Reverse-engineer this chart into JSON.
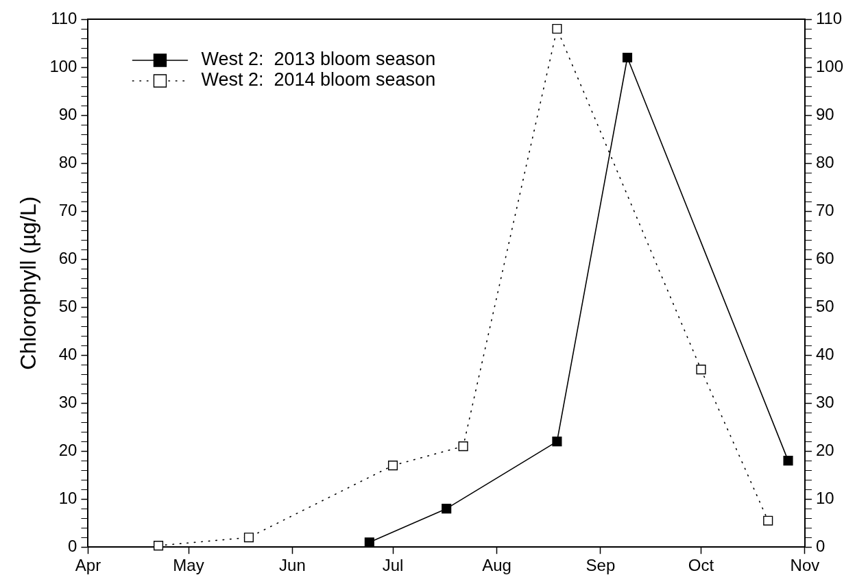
{
  "chart_data": {
    "type": "line",
    "ylabel": "Chlorophyll (µg/L)",
    "marker": "square",
    "legend": "top left",
    "grid": false,
    "xlim": [
      "--04-01",
      "--11-01"
    ],
    "xticks": [
      {
        "value": "--04-01",
        "label": "Apr"
      },
      {
        "value": "--05-01",
        "label": "May"
      },
      {
        "value": "--06-01",
        "label": "Jun"
      },
      {
        "value": "--07-01",
        "label": "Jul"
      },
      {
        "value": "--08-01",
        "label": "Aug"
      },
      {
        "value": "--09-01",
        "label": "Sep"
      },
      {
        "value": "--10-01",
        "label": "Oct"
      },
      {
        "value": "--11-01",
        "label": "Nov"
      }
    ],
    "ylim": [
      0,
      110
    ],
    "yticks": [
      0,
      {
        "value": 2,
        "label": null
      },
      {
        "value": 4,
        "label": null
      },
      {
        "value": 6,
        "label": null
      },
      {
        "value": 8,
        "label": null
      },
      10,
      {
        "value": 12,
        "label": null
      },
      {
        "value": 14,
        "label": null
      },
      {
        "value": 16,
        "label": null
      },
      {
        "value": 18,
        "label": null
      },
      20,
      {
        "value": 22,
        "label": null
      },
      {
        "value": 24,
        "label": null
      },
      {
        "value": 26,
        "label": null
      },
      {
        "value": 28,
        "label": null
      },
      30,
      {
        "value": 32,
        "label": null
      },
      {
        "value": 34,
        "label": null
      },
      {
        "value": 36,
        "label": null
      },
      {
        "value": 38,
        "label": null
      },
      40,
      {
        "value": 42,
        "label": null
      },
      {
        "value": 44,
        "label": null
      },
      {
        "value": 46,
        "label": null
      },
      {
        "value": 48,
        "label": null
      },
      50,
      {
        "value": 52,
        "label": null
      },
      {
        "value": 54,
        "label": null
      },
      {
        "value": 56,
        "label": null
      },
      {
        "value": 58,
        "label": null
      },
      60,
      {
        "value": 62,
        "label": null
      },
      {
        "value": 64,
        "label": null
      },
      {
        "value": 66,
        "label": null
      },
      {
        "value": 68,
        "label": null
      },
      70,
      {
        "value": 72,
        "label": null
      },
      {
        "value": 74,
        "label": null
      },
      {
        "value": 76,
        "label": null
      },
      {
        "value": 78,
        "label": null
      },
      80,
      {
        "value": 82,
        "label": null
      },
      {
        "value": 84,
        "label": null
      },
      {
        "value": 86,
        "label": null
      },
      {
        "value": 88,
        "label": null
      },
      90,
      {
        "value": 92,
        "label": null
      },
      {
        "value": 94,
        "label": null
      },
      {
        "value": 96,
        "label": null
      },
      {
        "value": 98,
        "label": null
      },
      100,
      {
        "value": 102,
        "label": null
      },
      {
        "value": 104,
        "label": null
      },
      {
        "value": 106,
        "label": null
      },
      {
        "value": 108,
        "label": null
      },
      110
    ],
    "y2lim": [
      0,
      110
    ],
    "y2ticks": [
      0,
      {
        "value": 2,
        "label": null
      },
      {
        "value": 4,
        "label": null
      },
      {
        "value": 6,
        "label": null
      },
      {
        "value": 8,
        "label": null
      },
      10,
      {
        "value": 12,
        "label": null
      },
      {
        "value": 14,
        "label": null
      },
      {
        "value": 16,
        "label": null
      },
      {
        "value": 18,
        "label": null
      },
      20,
      {
        "value": 22,
        "label": null
      },
      {
        "value": 24,
        "label": null
      },
      {
        "value": 26,
        "label": null
      },
      {
        "value": 28,
        "label": null
      },
      30,
      {
        "value": 32,
        "label": null
      },
      {
        "value": 34,
        "label": null
      },
      {
        "value": 36,
        "label": null
      },
      {
        "value": 38,
        "label": null
      },
      40,
      {
        "value": 42,
        "label": null
      },
      {
        "value": 44,
        "label": null
      },
      {
        "value": 46,
        "label": null
      },
      {
        "value": 48,
        "label": null
      },
      50,
      {
        "value": 52,
        "label": null
      },
      {
        "value": 54,
        "label": null
      },
      {
        "value": 56,
        "label": null
      },
      {
        "value": 58,
        "label": null
      },
      60,
      {
        "value": 62,
        "label": null
      },
      {
        "value": 64,
        "label": null
      },
      {
        "value": 66,
        "label": null
      },
      {
        "value": 68,
        "label": null
      },
      70,
      {
        "value": 72,
        "label": null
      },
      {
        "value": 74,
        "label": null
      },
      {
        "value": 76,
        "label": null
      },
      {
        "value": 78,
        "label": null
      },
      80,
      {
        "value": 82,
        "label": null
      },
      {
        "value": 84,
        "label": null
      },
      {
        "value": 86,
        "label": null
      },
      {
        "value": 88,
        "label": null
      },
      90,
      {
        "value": 92,
        "label": null
      },
      {
        "value": 94,
        "label": null
      },
      {
        "value": 96,
        "label": null
      },
      {
        "value": 98,
        "label": null
      },
      100,
      {
        "value": 102,
        "label": null
      },
      {
        "value": 104,
        "label": null
      },
      {
        "value": 106,
        "label": null
      },
      {
        "value": 108,
        "label": null
      },
      110
    ],
    "series": [
      {
        "name": "West 2:  2013 bloom season",
        "color": "#000000",
        "line_style": "solid",
        "x": [
          "--06-24",
          "--07-17",
          "--08-19",
          "--09-09",
          "--10-27"
        ],
        "values": [
          1,
          8,
          22,
          102,
          18
        ]
      },
      {
        "name": "West 2:  2014 bloom season",
        "color": "#000000",
        "line_style": "dotted",
        "x": [
          "--04-22",
          "--05-19",
          "--07-01",
          "--07-22",
          "--08-19",
          "--10-01",
          "--10-21"
        ],
        "values": [
          0.3,
          2,
          17,
          21,
          108,
          37,
          5.5
        ]
      }
    ]
  }
}
